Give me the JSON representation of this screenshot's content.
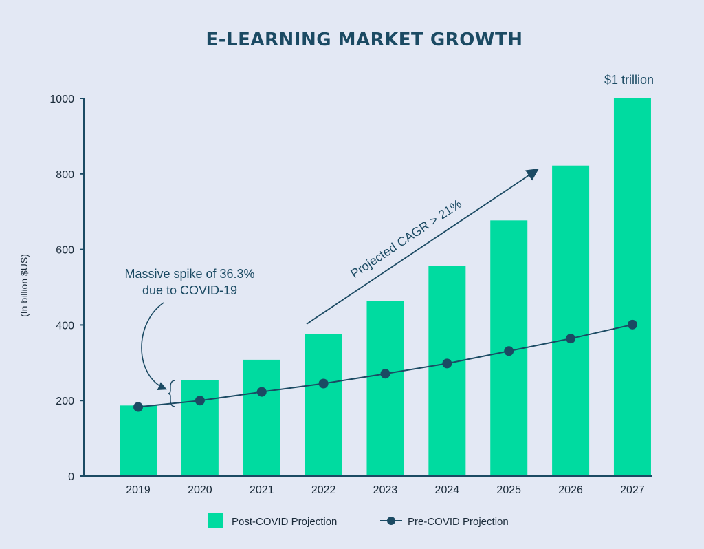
{
  "colors": {
    "background": "#e3e8f4",
    "bar": "#00dba0",
    "line": "#1b4a63",
    "text": "#1b2b3a"
  },
  "chart_data": {
    "type": "bar",
    "title": "E-LEARNING MARKET GROWTH",
    "xlabel": "",
    "ylabel": "(In billion $US)",
    "ylim": [
      0,
      1000
    ],
    "yticks": [
      0,
      200,
      400,
      600,
      800,
      1000
    ],
    "categories": [
      "2019",
      "2020",
      "2021",
      "2022",
      "2023",
      "2024",
      "2025",
      "2026",
      "2027"
    ],
    "series": [
      {
        "name": "Post-COVID Projection",
        "type": "bar",
        "values": [
          187,
          255,
          308,
          376,
          463,
          556,
          677,
          822,
          1000
        ]
      },
      {
        "name": "Pre-COVID Projection",
        "type": "line",
        "values": [
          183,
          200,
          223,
          245,
          271,
          298,
          331,
          364,
          401
        ]
      }
    ],
    "annotations": {
      "top_label": "$1 trillion",
      "spike_line1": "Massive spike of 36.3%",
      "spike_line2": "due to COVID-19",
      "cagr": "Projected CAGR > 21%"
    },
    "legend": {
      "position": "bottom-center",
      "bar_label": "Post-COVID Projection",
      "line_label": "Pre-COVID Projection"
    }
  }
}
